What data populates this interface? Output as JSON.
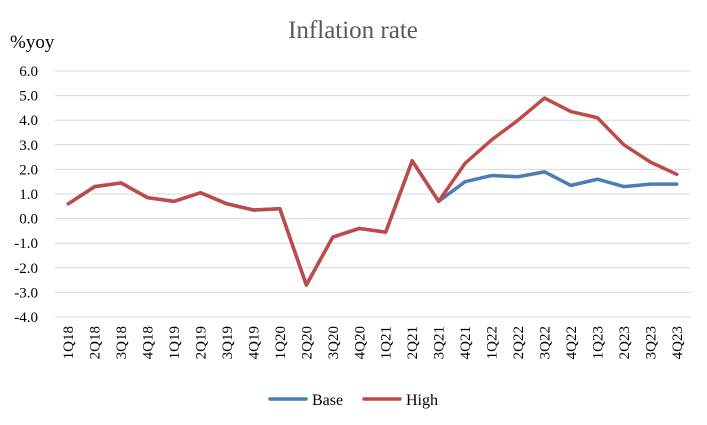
{
  "chart_data": {
    "type": "line",
    "title": "Inflation rate",
    "ylabel": "%yoy",
    "xlabel": "",
    "ylim": [
      -4.0,
      6.0
    ],
    "ytick_step": 1.0,
    "grid": true,
    "legend_position": "bottom",
    "categories": [
      "1Q18",
      "2Q18",
      "3Q18",
      "4Q18",
      "1Q19",
      "2Q19",
      "3Q19",
      "4Q19",
      "1Q20",
      "2Q20",
      "3Q20",
      "4Q20",
      "1Q21",
      "2Q21",
      "3Q21",
      "4Q21",
      "1Q22",
      "2Q22",
      "3Q22",
      "4Q22",
      "1Q23",
      "2Q23",
      "3Q23",
      "4Q23"
    ],
    "series": [
      {
        "name": "Base",
        "color": "#4a7eb5",
        "values": [
          0.6,
          1.3,
          1.45,
          0.85,
          0.7,
          1.05,
          0.6,
          0.35,
          0.4,
          -2.7,
          -0.75,
          -0.4,
          -0.55,
          2.35,
          0.7,
          1.5,
          1.75,
          1.7,
          1.9,
          1.35,
          1.6,
          1.3,
          1.4,
          1.4
        ]
      },
      {
        "name": "High",
        "color": "#be4b48",
        "values": [
          0.6,
          1.3,
          1.45,
          0.85,
          0.7,
          1.05,
          0.6,
          0.35,
          0.4,
          -2.7,
          -0.75,
          -0.4,
          -0.55,
          2.35,
          0.7,
          2.25,
          3.2,
          4.0,
          4.9,
          4.35,
          4.1,
          3.0,
          2.3,
          1.8
        ]
      }
    ]
  }
}
